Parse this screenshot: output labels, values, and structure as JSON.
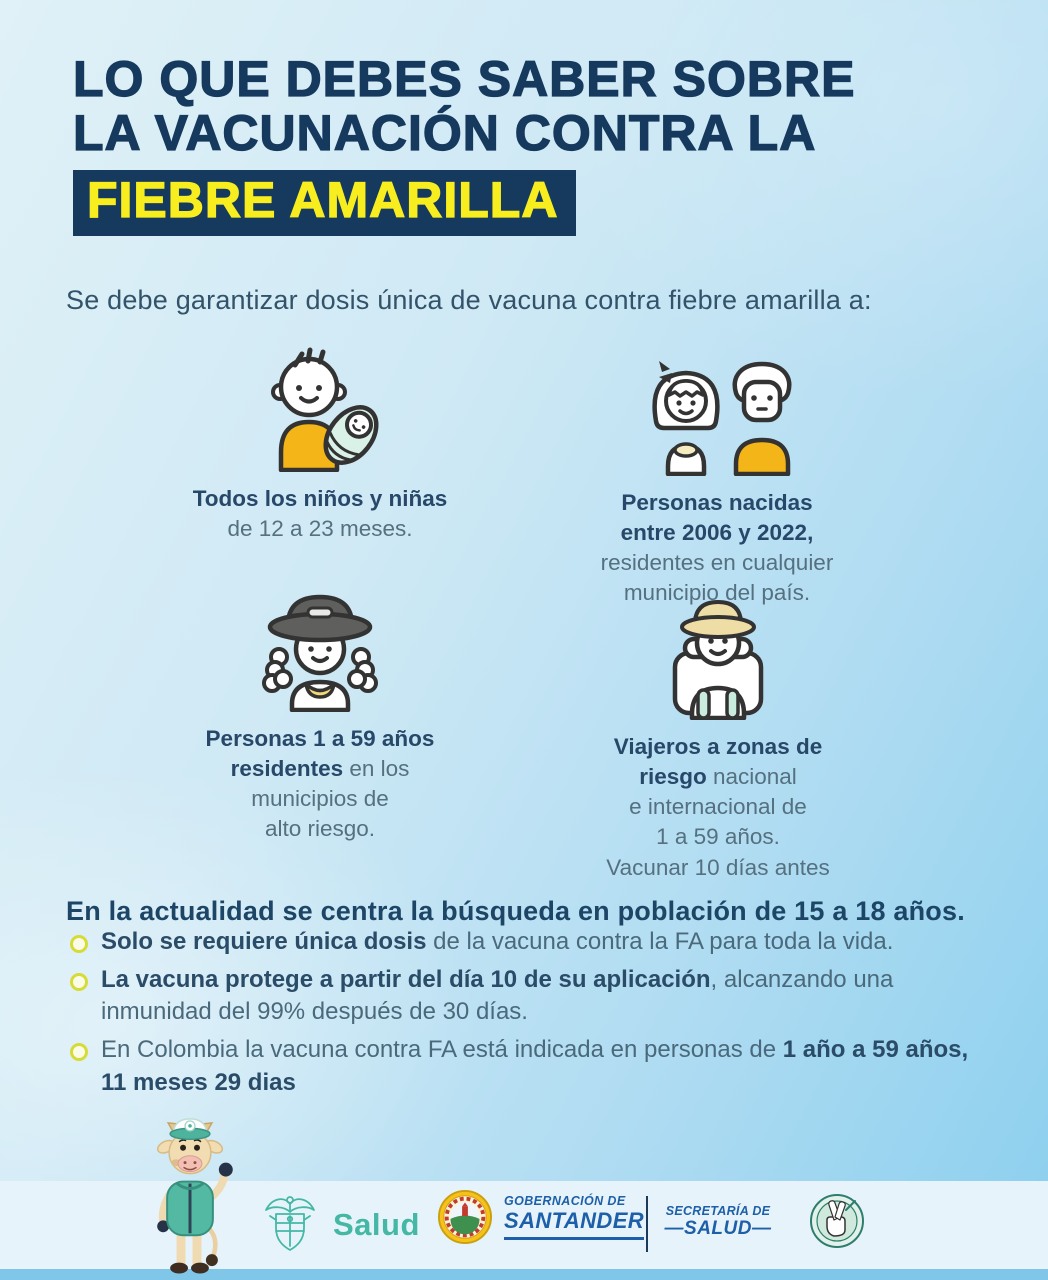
{
  "colors": {
    "navy": "#16395e",
    "highlight_yellow": "#f8ee1f",
    "body_text": "#4a6a7c",
    "bold_text": "#2b4c68",
    "icon_yellow": "#f3b517",
    "icon_mint": "#d9f1e6",
    "ministry_teal": "#45b8a5",
    "government_blue": "#1d5fa8"
  },
  "title": {
    "lines": [
      "LO QUE DEBES SABER SOBRE",
      "LA VACUNACIÓN CONTRA LA"
    ],
    "highlight": "FIEBRE AMARILLA"
  },
  "subtitle": "Se debe garantizar dosis única de vacuna contra fiebre amarilla a:",
  "groups": [
    {
      "icon": "adult-with-baby-icon",
      "caption_lines": [
        [
          {
            "t": "Todos los niños y niñas",
            "b": true
          }
        ],
        [
          {
            "t": "de 12 a 23 meses.",
            "b": false
          }
        ]
      ]
    },
    {
      "icon": "girl-and-boy-icon",
      "caption_lines": [
        [
          {
            "t": "Personas nacidas",
            "b": true
          }
        ],
        [
          {
            "t": "entre 2006 y 2022,",
            "b": true
          }
        ],
        [
          {
            "t": "residentes en cualquier",
            "b": false
          }
        ],
        [
          {
            "t": "municipio del país.",
            "b": false
          }
        ]
      ]
    },
    {
      "icon": "woman-with-hat-icon",
      "caption_lines": [
        [
          {
            "t": "Personas 1 a 59 años",
            "b": true
          }
        ],
        [
          {
            "t": "residentes",
            "b": true
          },
          {
            "t": " en los",
            "b": false
          }
        ],
        [
          {
            "t": "municipios de",
            "b": false
          }
        ],
        [
          {
            "t": "alto riesgo.",
            "b": false
          }
        ]
      ]
    },
    {
      "icon": "traveler-icon",
      "caption_lines": [
        [
          {
            "t": "Viajeros a zonas de",
            "b": true
          }
        ],
        [
          {
            "t": "riesgo",
            "b": true
          },
          {
            "t": " nacional",
            "b": false
          }
        ],
        [
          {
            "t": "e internacional de",
            "b": false
          }
        ],
        [
          {
            "t": "1 a 59 años.",
            "b": false
          }
        ],
        [
          {
            "t": "Vacunar 10 días antes",
            "b": false
          }
        ]
      ]
    }
  ],
  "focus_heading": "En la actualidad se centra la búsqueda en población de 15 a 18 años.",
  "bullets": [
    [
      {
        "t": "Solo se requiere única dosis",
        "b": true
      },
      {
        "t": " de la vacuna contra la FA para toda la vida.",
        "b": false
      }
    ],
    [
      {
        "t": "La vacuna protege a partir del día 10 de su aplicación",
        "b": true
      },
      {
        "t": ", alcanzando una inmunidad del 99% después de 30 días.",
        "b": false
      }
    ],
    [
      {
        "t": "En Colombia la vacuna contra FA está indicada en personas de ",
        "b": false
      },
      {
        "t": "1 año a 59 años, 11 meses 29 dias",
        "b": true
      }
    ]
  ],
  "footer": {
    "ministry_wordmark": "Salud",
    "gobernacion_line1": "GOBERNACIÓN DE",
    "gobernacion_line2": "SANTANDER",
    "secretaria_line1": "SECRETARÍA DE",
    "secretaria_line2": "—SALUD—"
  }
}
